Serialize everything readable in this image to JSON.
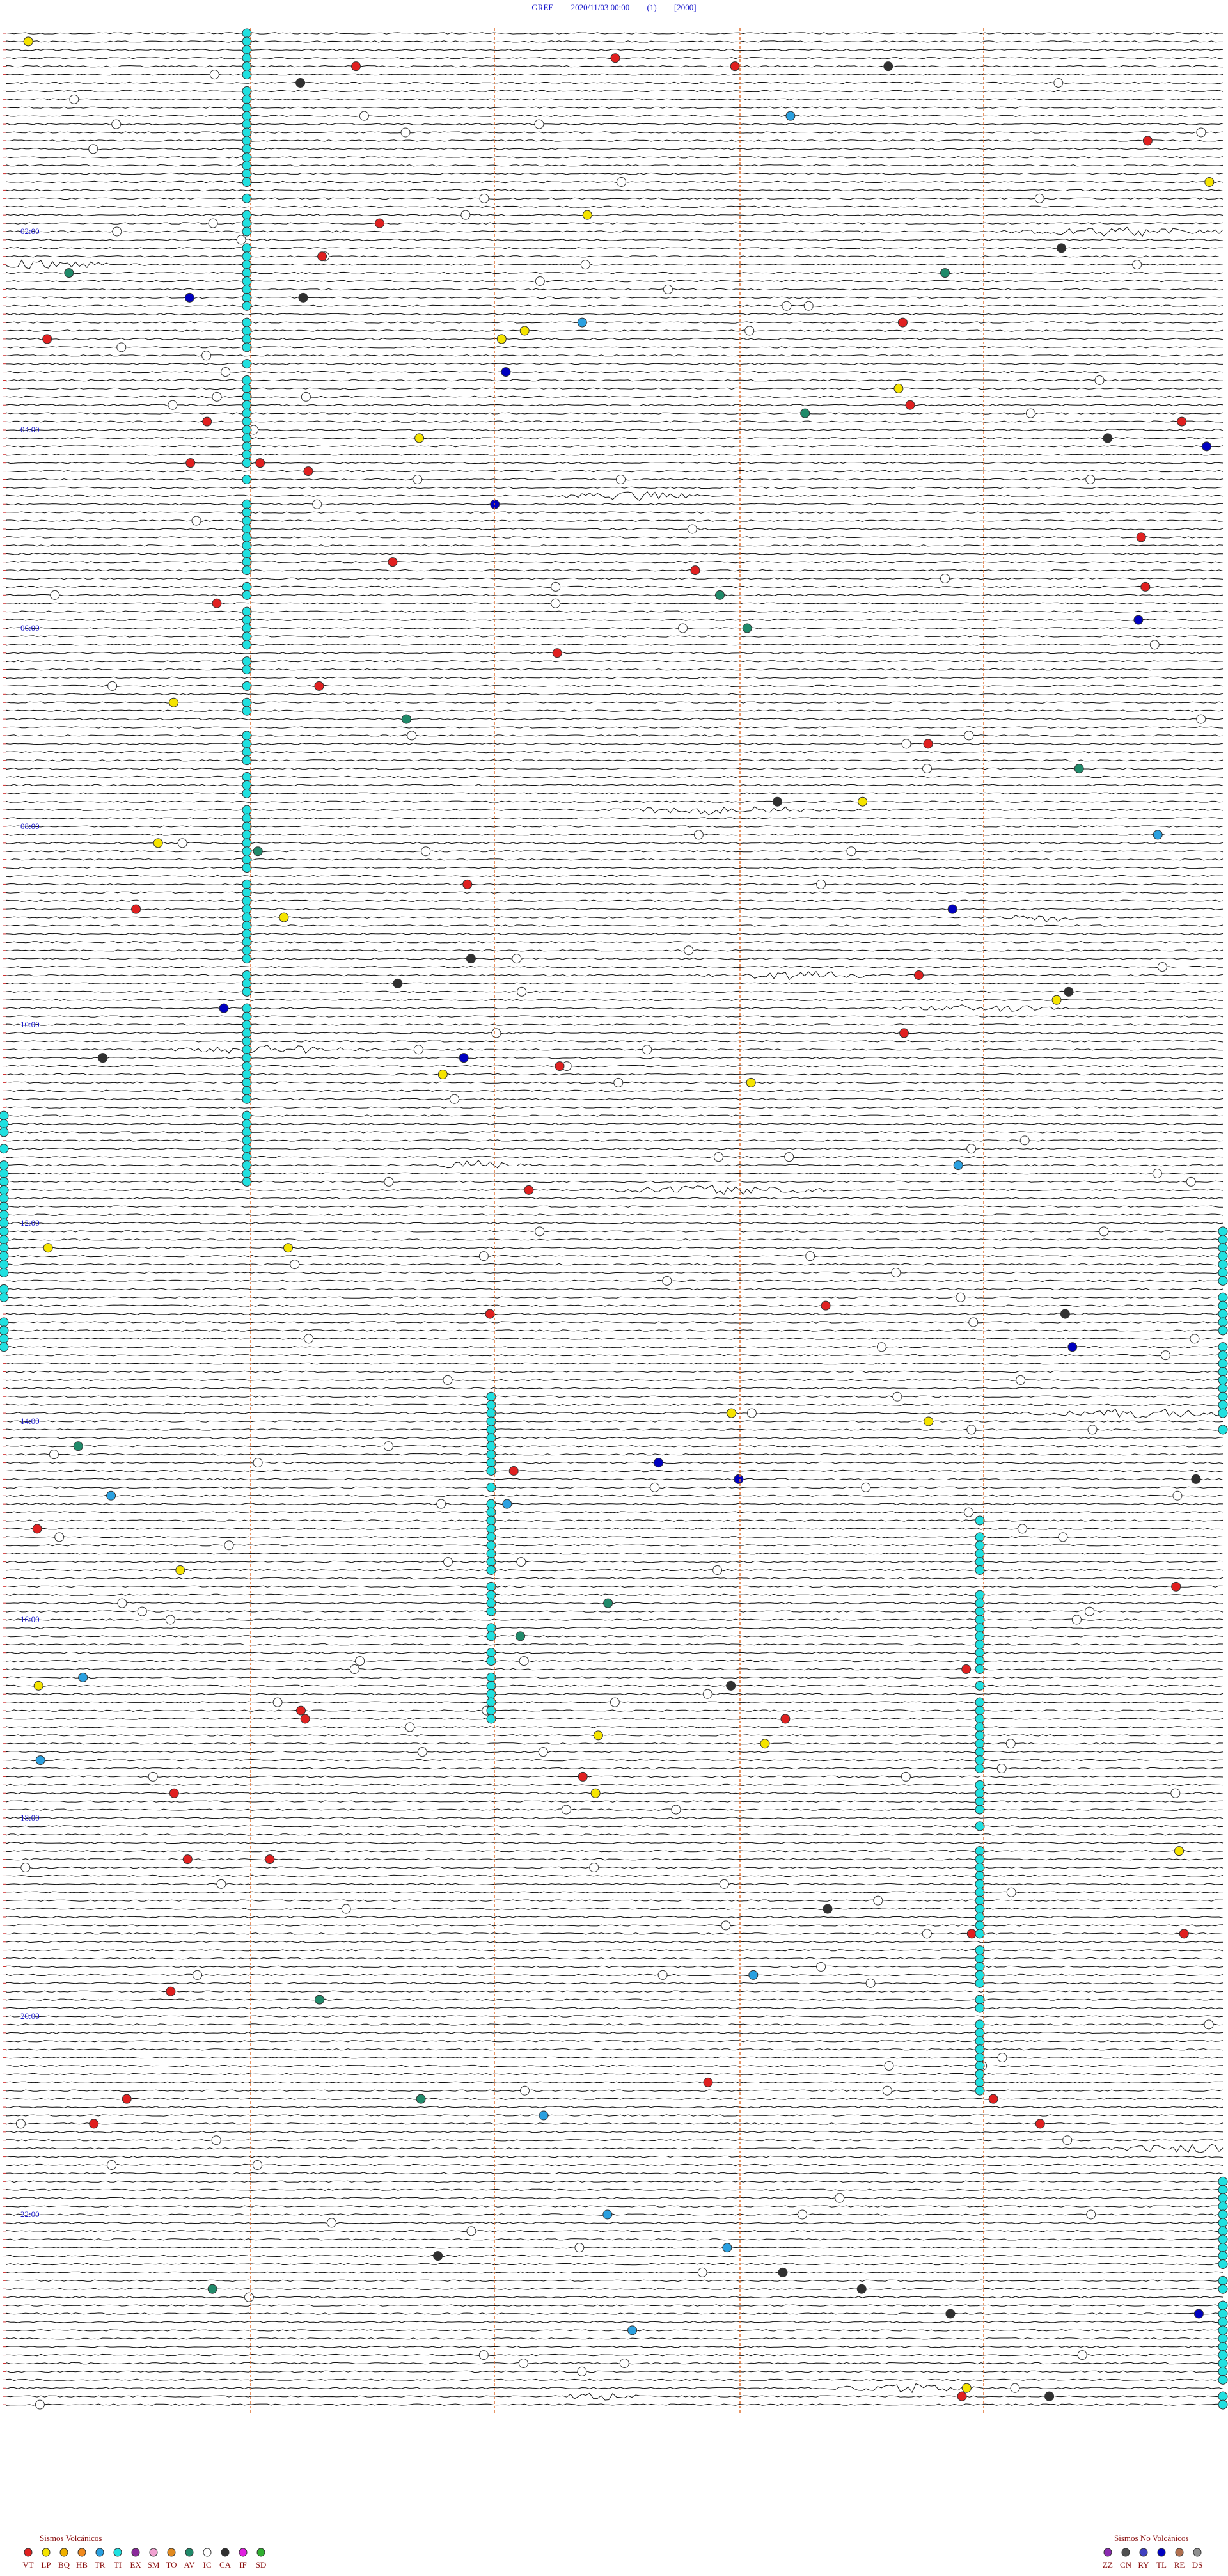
{
  "header": {
    "station": "GREE",
    "datetime": "2020/11/03 00:00",
    "channel": "(1)",
    "scale": "[2000]"
  },
  "time_labels": [
    "02:00",
    "04:00",
    "06:00",
    "08:00",
    "10:00",
    "12:00",
    "14:00",
    "16:00",
    "18:00",
    "20:00",
    "22:00"
  ],
  "legend": {
    "volcanic": {
      "title": "Sismos Volcánicos",
      "items": [
        {
          "code": "VT",
          "color": "#e02020"
        },
        {
          "code": "LP",
          "color": "#f5e400"
        },
        {
          "code": "BQ",
          "color": "#f0b000"
        },
        {
          "code": "HB",
          "color": "#f08a20"
        },
        {
          "code": "TR",
          "color": "#2aa0e0"
        },
        {
          "code": "TI",
          "color": "#20e0e0"
        },
        {
          "code": "EX",
          "color": "#8a2a9a"
        },
        {
          "code": "SM",
          "color": "#f0a0d0"
        },
        {
          "code": "TO",
          "color": "#e08a20"
        },
        {
          "code": "AV",
          "color": "#208a6a"
        },
        {
          "code": "IC",
          "color": "#ffffff"
        },
        {
          "code": "CA",
          "color": "#303030"
        },
        {
          "code": "IF",
          "color": "#e020e0"
        },
        {
          "code": "SD",
          "color": "#30b030"
        }
      ]
    },
    "non_volcanic": {
      "title": "Sismos No Volcánicos",
      "items": [
        {
          "code": "ZZ",
          "color": "#8a2ab0"
        },
        {
          "code": "CN",
          "color": "#505050"
        },
        {
          "code": "RY",
          "color": "#4040c0"
        },
        {
          "code": "TL",
          "color": "#0000c0"
        },
        {
          "code": "RE",
          "color": "#b07050"
        },
        {
          "code": "DS",
          "color": "#909090"
        }
      ]
    }
  }
}
